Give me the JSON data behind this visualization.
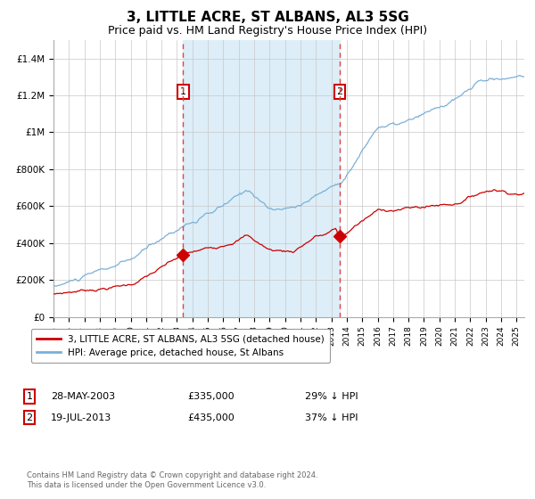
{
  "title": "3, LITTLE ACRE, ST ALBANS, AL3 5SG",
  "subtitle": "Price paid vs. HM Land Registry's House Price Index (HPI)",
  "title_fontsize": 11,
  "subtitle_fontsize": 9,
  "hpi_line_color": "#7ab0d8",
  "price_color": "#cc0000",
  "background_color": "#ffffff",
  "plot_bg_color": "#ffffff",
  "shaded_region_color": "#ddeef8",
  "ylim": [
    0,
    1500000
  ],
  "yticks": [
    0,
    200000,
    400000,
    600000,
    800000,
    1000000,
    1200000,
    1400000
  ],
  "ytick_labels": [
    "£0",
    "£200K",
    "£400K",
    "£600K",
    "£800K",
    "£1M",
    "£1.2M",
    "£1.4M"
  ],
  "xstart_year": 1995,
  "xend_year": 2025.5,
  "xtick_years": [
    1995,
    1996,
    1997,
    1998,
    1999,
    2000,
    2001,
    2002,
    2003,
    2004,
    2005,
    2006,
    2007,
    2008,
    2009,
    2010,
    2011,
    2012,
    2013,
    2014,
    2015,
    2016,
    2017,
    2018,
    2019,
    2020,
    2021,
    2022,
    2023,
    2024,
    2025
  ],
  "sale1_year": 2003.4,
  "sale1_price": 335000,
  "sale2_year": 2013.55,
  "sale2_price": 435000,
  "legend_line1": "3, LITTLE ACRE, ST ALBANS, AL3 5SG (detached house)",
  "legend_line2": "HPI: Average price, detached house, St Albans",
  "ann1_label": "1",
  "ann1_date": "28-MAY-2003",
  "ann1_price": "£335,000",
  "ann1_pct": "29% ↓ HPI",
  "ann2_label": "2",
  "ann2_date": "19-JUL-2013",
  "ann2_price": "£435,000",
  "ann2_pct": "37% ↓ HPI",
  "footer": "Contains HM Land Registry data © Crown copyright and database right 2024.\nThis data is licensed under the Open Government Licence v3.0.",
  "grid_color": "#c8c8c8",
  "dashed_line_color": "#dd4444",
  "label_box_color": "#cc0000"
}
